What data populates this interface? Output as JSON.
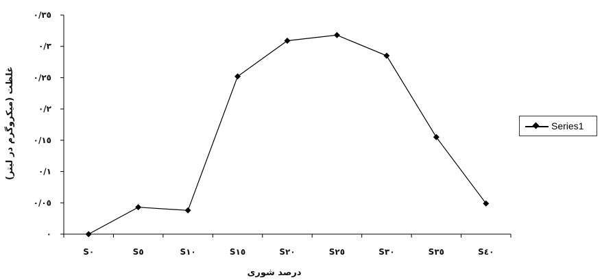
{
  "chart_data": {
    "type": "line",
    "categories": [
      "S٠",
      "S٥",
      "S١٠",
      "S١٥",
      "S٢٠",
      "S٢٥",
      "S٣٠",
      "S٣٥",
      "S٤٠"
    ],
    "series": [
      {
        "name": "Series1",
        "values": [
          0.0,
          0.043,
          0.038,
          0.252,
          0.309,
          0.318,
          0.285,
          0.155,
          0.049
        ],
        "color": "#000000",
        "marker": "diamond"
      }
    ],
    "ylim": [
      0,
      0.35
    ],
    "yticks": [
      0,
      0.05,
      0.1,
      0.15,
      0.2,
      0.25,
      0.3,
      0.35
    ],
    "ytick_labels": [
      "٠",
      "٠/٠٥",
      "٠/١",
      "٠/١٥",
      "٠/٢",
      "٠/٢٥",
      "٠/٣",
      "٠/٣٥"
    ],
    "xlabel": "درصد شوری",
    "ylabel": "غلظت (میکروگرم در لیتر)",
    "grid": false,
    "legend_position": "right"
  }
}
